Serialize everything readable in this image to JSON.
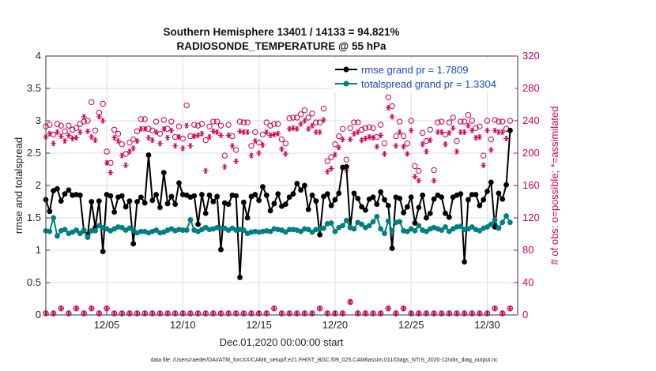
{
  "chart_data": {
    "type": "line",
    "title": "Southern Hemisphere 13401 / 14133 = 94.821%",
    "subtitle": "RADIOSONDE_TEMPERATURE @ 55 hPa",
    "xlabel": "Dec.01,2020 00:00:00 start",
    "ylabel": "rmse and totalspread",
    "ylabel_right": "# of obs: o=possible; *=assimilated",
    "footer": "data file: /Users/raeder/DAI/ATM_forcXX/CAM6_setup/f.e21.FHIST_BGC.f09_025.CAM6assim.011/Diags_NTrS_2020-12/obs_diag_output.nc",
    "xlim": [
      1,
      32
    ],
    "ylim": [
      0,
      4
    ],
    "ylim_right": [
      0,
      320
    ],
    "x_ticks": [
      5,
      10,
      15,
      20,
      25,
      30
    ],
    "x_tick_labels": [
      "12/05",
      "12/10",
      "12/15",
      "12/20",
      "12/25",
      "12/30"
    ],
    "y_ticks": [
      0,
      0.5,
      1,
      1.5,
      2,
      2.5,
      3,
      3.5,
      4
    ],
    "y_tick_labels": [
      "0",
      "0.5",
      "1",
      "1.5",
      "2",
      "2.5",
      "3",
      "3.5",
      "4"
    ],
    "y_ticks_right": [
      0,
      40,
      80,
      120,
      160,
      200,
      240,
      280,
      320
    ],
    "y_tick_labels_right": [
      "0",
      "40",
      "80",
      "120",
      "160",
      "200",
      "240",
      "280",
      "320"
    ],
    "grid": true,
    "legend_position": "top-right",
    "colors": {
      "rmse": "#000000",
      "spread": "#008080",
      "obs": "#cc0055",
      "legend_text": "#1a47d6"
    },
    "series": [
      {
        "name": "rmse grand pr = 1.7809",
        "color": "#000000",
        "x": [
          1.0,
          1.25,
          1.5,
          1.75,
          2.0,
          2.25,
          2.5,
          2.75,
          3.0,
          3.25,
          3.5,
          3.75,
          4.0,
          4.25,
          4.5,
          4.75,
          5.0,
          5.25,
          5.5,
          5.75,
          6.0,
          6.25,
          6.5,
          6.75,
          7.0,
          7.25,
          7.5,
          7.75,
          8.0,
          8.25,
          8.5,
          8.75,
          9.0,
          9.25,
          9.5,
          9.75,
          10.0,
          10.25,
          10.5,
          10.75,
          11.0,
          11.25,
          11.5,
          11.75,
          12.0,
          12.25,
          12.5,
          12.75,
          13.0,
          13.25,
          13.5,
          13.75,
          14.0,
          14.25,
          14.5,
          14.75,
          15.0,
          15.25,
          15.5,
          15.75,
          16.0,
          16.25,
          16.5,
          16.75,
          17.0,
          17.25,
          17.5,
          17.75,
          18.0,
          18.25,
          18.5,
          18.75,
          19.0,
          19.25,
          19.5,
          19.75,
          20.0,
          20.25,
          20.5,
          20.75,
          21.0,
          21.25,
          21.5,
          21.75,
          22.0,
          22.25,
          22.5,
          22.75,
          23.0,
          23.25,
          23.5,
          23.75,
          24.0,
          24.25,
          24.5,
          24.75,
          25.0,
          25.25,
          25.5,
          25.75,
          26.0,
          26.25,
          26.5,
          26.75,
          27.0,
          27.25,
          27.5,
          27.75,
          28.0,
          28.25,
          28.5,
          28.75,
          29.0,
          29.25,
          29.5,
          29.75,
          30.0,
          30.25,
          30.5,
          30.75,
          31.0,
          31.25,
          31.5
        ],
        "values": [
          1.78,
          1.6,
          1.92,
          1.95,
          1.76,
          1.87,
          1.93,
          1.85,
          1.86,
          1.85,
          1.3,
          1.24,
          1.75,
          1.35,
          1.76,
          0.98,
          1.86,
          1.84,
          1.59,
          1.82,
          1.84,
          1.67,
          1.76,
          1.1,
          1.75,
          1.82,
          1.73,
          2.47,
          1.77,
          1.86,
          1.66,
          2.2,
          1.72,
          1.83,
          1.71,
          2.04,
          1.86,
          1.85,
          1.82,
          1.84,
          1.4,
          1.86,
          1.57,
          1.85,
          1.75,
          1.83,
          1.01,
          1.73,
          1.71,
          1.85,
          1.84,
          0.58,
          1.74,
          1.5,
          1.83,
          1.86,
          1.77,
          1.98,
          1.85,
          1.61,
          1.72,
          1.87,
          1.68,
          1.71,
          1.82,
          1.87,
          2.03,
          1.93,
          2.0,
          1.63,
          1.85,
          1.76,
          1.24,
          1.83,
          1.87,
          1.69,
          1.78,
          1.88,
          2.28,
          2.29,
          1.35,
          1.88,
          1.8,
          1.67,
          1.62,
          1.79,
          1.82,
          1.71,
          1.9,
          1.78,
          1.69,
          1.03,
          1.82,
          1.8,
          1.58,
          1.67,
          1.82,
          1.42,
          1.66,
          1.85,
          1.5,
          1.57,
          1.79,
          1.85,
          1.82,
          1.57,
          1.51,
          1.82,
          1.85,
          1.87,
          0.82,
          1.78,
          1.86,
          1.86,
          1.69,
          1.78,
          1.91,
          2.05,
          1.36,
          1.88,
          1.79,
          2.01,
          2.85
        ]
      },
      {
        "name": "totalspread grand pr = 1.3304",
        "color": "#008080",
        "x": [
          1.0,
          1.25,
          1.5,
          1.75,
          2.0,
          2.25,
          2.5,
          2.75,
          3.0,
          3.25,
          3.5,
          3.75,
          4.0,
          4.25,
          4.5,
          4.75,
          5.0,
          5.25,
          5.5,
          5.75,
          6.0,
          6.25,
          6.5,
          6.75,
          7.0,
          7.25,
          7.5,
          7.75,
          8.0,
          8.25,
          8.5,
          8.75,
          9.0,
          9.25,
          9.5,
          9.75,
          10.0,
          10.25,
          10.5,
          10.75,
          11.0,
          11.25,
          11.5,
          11.75,
          12.0,
          12.25,
          12.5,
          12.75,
          13.0,
          13.25,
          13.5,
          13.75,
          14.0,
          14.25,
          14.5,
          14.75,
          15.0,
          15.25,
          15.5,
          15.75,
          16.0,
          16.25,
          16.5,
          16.75,
          17.0,
          17.25,
          17.5,
          17.75,
          18.0,
          18.25,
          18.5,
          18.75,
          19.0,
          19.25,
          19.5,
          19.75,
          20.0,
          20.25,
          20.5,
          20.75,
          21.0,
          21.25,
          21.5,
          21.75,
          22.0,
          22.25,
          22.5,
          22.75,
          23.0,
          23.25,
          23.5,
          23.75,
          24.0,
          24.25,
          24.5,
          24.75,
          25.0,
          25.25,
          25.5,
          25.75,
          26.0,
          26.25,
          26.5,
          26.75,
          27.0,
          27.25,
          27.5,
          27.75,
          28.0,
          28.25,
          28.5,
          28.75,
          29.0,
          29.25,
          29.5,
          29.75,
          30.0,
          30.25,
          30.5,
          30.75,
          31.0,
          31.25,
          31.5
        ],
        "values": [
          1.3,
          1.29,
          1.5,
          1.22,
          1.3,
          1.32,
          1.26,
          1.28,
          1.31,
          1.26,
          1.31,
          1.2,
          1.3,
          1.3,
          1.38,
          1.35,
          1.33,
          1.3,
          1.33,
          1.36,
          1.35,
          1.31,
          1.34,
          1.31,
          1.27,
          1.29,
          1.29,
          1.27,
          1.29,
          1.31,
          1.27,
          1.28,
          1.31,
          1.33,
          1.3,
          1.32,
          1.31,
          1.31,
          1.47,
          1.31,
          1.29,
          1.32,
          1.35,
          1.32,
          1.33,
          1.35,
          1.34,
          1.34,
          1.31,
          1.34,
          1.31,
          1.32,
          1.31,
          1.26,
          1.28,
          1.29,
          1.28,
          1.29,
          1.3,
          1.29,
          1.33,
          1.32,
          1.31,
          1.28,
          1.32,
          1.32,
          1.31,
          1.29,
          1.33,
          1.32,
          1.28,
          1.32,
          1.33,
          1.34,
          1.41,
          1.42,
          1.29,
          1.35,
          1.38,
          1.46,
          1.35,
          1.33,
          1.43,
          1.4,
          1.35,
          1.38,
          1.44,
          1.52,
          1.33,
          1.26,
          1.45,
          1.3,
          1.43,
          1.44,
          1.3,
          1.29,
          1.33,
          1.3,
          1.38,
          1.31,
          1.29,
          1.33,
          1.35,
          1.33,
          1.31,
          1.36,
          1.29,
          1.33,
          1.36,
          1.37,
          1.32,
          1.33,
          1.36,
          1.32,
          1.3,
          1.34,
          1.36,
          1.4,
          1.47,
          1.34,
          1.43,
          1.53,
          1.43
        ]
      },
      {
        "name": "obs possible",
        "color": "#cc0055",
        "axis": "right",
        "marker": "o",
        "x": [
          1.0,
          1.25,
          1.5,
          1.75,
          2.0,
          2.25,
          2.5,
          2.75,
          3.0,
          3.25,
          3.5,
          3.75,
          4.0,
          4.25,
          4.5,
          4.75,
          5.0,
          5.25,
          5.5,
          5.75,
          6.0,
          6.25,
          6.5,
          6.75,
          7.0,
          7.25,
          7.5,
          7.75,
          8.0,
          8.25,
          8.5,
          8.75,
          9.0,
          9.25,
          9.5,
          9.75,
          10.0,
          10.25,
          10.5,
          10.75,
          11.0,
          11.25,
          11.5,
          11.75,
          12.0,
          12.25,
          12.5,
          12.75,
          13.0,
          13.25,
          13.5,
          13.75,
          14.0,
          14.25,
          14.5,
          14.75,
          15.0,
          15.25,
          15.5,
          15.75,
          16.0,
          16.25,
          16.5,
          16.75,
          17.0,
          17.25,
          17.5,
          17.75,
          18.0,
          18.25,
          18.5,
          18.75,
          19.0,
          19.25,
          19.5,
          19.75,
          20.0,
          20.25,
          20.5,
          20.75,
          21.0,
          21.25,
          21.5,
          21.75,
          22.0,
          22.25,
          22.5,
          22.75,
          23.0,
          23.25,
          23.5,
          23.75,
          24.0,
          24.25,
          24.5,
          24.75,
          25.0,
          25.25,
          25.5,
          25.75,
          26.0,
          26.25,
          26.5,
          26.75,
          27.0,
          27.25,
          27.5,
          27.75,
          28.0,
          28.25,
          28.5,
          28.75,
          29.0,
          29.25,
          29.5,
          29.75,
          30.0,
          30.25,
          30.5,
          30.75,
          31.0,
          31.25,
          31.5
        ],
        "values": [
          233,
          235,
          223,
          236,
          234,
          227,
          234,
          229,
          231,
          236,
          239,
          240,
          263,
          228,
          250,
          261,
          202,
          188,
          229,
          224,
          211,
          199,
          213,
          217,
          227,
          242,
          242,
          230,
          228,
          239,
          224,
          241,
          230,
          239,
          220,
          233,
          218,
          259,
          221,
          235,
          234,
          236,
          216,
          233,
          239,
          239,
          234,
          197,
          235,
          221,
          204,
          239,
          238,
          238,
          209,
          226,
          213,
          223,
          238,
          234,
          236,
          236,
          217,
          212,
          243,
          244,
          244,
          248,
          253,
          244,
          249,
          238,
          238,
          255,
          190,
          195,
          211,
          221,
          230,
          192,
          231,
          238,
          238,
          229,
          231,
          232,
          231,
          220,
          235,
          212,
          269,
          258,
          221,
          239,
          221,
          212,
          240,
          184,
          178,
          225,
          215,
          229,
          179,
          238,
          239,
          223,
          238,
          244,
          215,
          239,
          239,
          247,
          240,
          231,
          233,
          197,
          240,
          217,
          241,
          239,
          239,
          230,
          240
        ]
      },
      {
        "name": "obs assimilated",
        "color": "#cc0055",
        "axis": "right",
        "marker": "*",
        "x": [
          1.0,
          1.25,
          1.5,
          1.75,
          2.0,
          2.25,
          2.5,
          2.75,
          3.0,
          3.25,
          3.5,
          3.75,
          4.0,
          4.25,
          4.5,
          4.75,
          5.0,
          5.25,
          5.5,
          5.75,
          6.0,
          6.25,
          6.5,
          6.75,
          7.0,
          7.25,
          7.5,
          7.75,
          8.0,
          8.25,
          8.5,
          8.75,
          9.0,
          9.25,
          9.5,
          9.75,
          10.0,
          10.25,
          10.5,
          10.75,
          11.0,
          11.25,
          11.5,
          11.75,
          12.0,
          12.25,
          12.5,
          12.75,
          13.0,
          13.25,
          13.5,
          13.75,
          14.0,
          14.25,
          14.5,
          14.75,
          15.0,
          15.25,
          15.5,
          15.75,
          16.0,
          16.25,
          16.5,
          16.75,
          17.0,
          17.25,
          17.5,
          17.75,
          18.0,
          18.25,
          18.5,
          18.75,
          19.0,
          19.25,
          19.5,
          19.75,
          20.0,
          20.25,
          20.5,
          20.75,
          21.0,
          21.25,
          21.5,
          21.75,
          22.0,
          22.25,
          22.5,
          22.75,
          23.0,
          23.25,
          23.5,
          23.75,
          24.0,
          24.25,
          24.5,
          24.75,
          25.0,
          25.25,
          25.5,
          25.75,
          26.0,
          26.25,
          26.5,
          26.75,
          27.0,
          27.25,
          27.5,
          27.75,
          28.0,
          28.25,
          28.5,
          28.75,
          29.0,
          29.25,
          29.5,
          29.75,
          30.0,
          30.25,
          30.5,
          30.75,
          31.0,
          31.25,
          31.5
        ],
        "values": [
          220,
          224,
          212,
          226,
          221,
          215,
          222,
          218,
          219,
          226,
          245,
          227,
          220,
          216,
          245,
          240,
          188,
          176,
          219,
          215,
          197,
          185,
          202,
          206,
          215,
          230,
          230,
          219,
          216,
          226,
          212,
          230,
          219,
          228,
          209,
          220,
          206,
          234,
          209,
          221,
          222,
          224,
          178,
          220,
          227,
          226,
          222,
          183,
          222,
          209,
          190,
          227,
          226,
          226,
          197,
          215,
          200,
          210,
          226,
          222,
          223,
          224,
          205,
          199,
          230,
          231,
          230,
          236,
          240,
          230,
          234,
          226,
          226,
          241,
          177,
          181,
          198,
          207,
          217,
          179,
          217,
          224,
          226,
          216,
          218,
          220,
          219,
          208,
          222,
          199,
          256,
          245,
          209,
          226,
          208,
          199,
          228,
          171,
          166,
          211,
          202,
          216,
          166,
          226,
          226,
          211,
          225,
          231,
          202,
          226,
          226,
          234,
          228,
          219,
          220,
          185,
          228,
          204,
          228,
          226,
          226,
          218,
          228
        ]
      },
      {
        "name": "obs near zero",
        "color": "#cc0055",
        "axis": "right",
        "marker": "o*",
        "x": [
          1.0,
          1.5,
          2.0,
          2.5,
          3.0,
          3.5,
          4.0,
          4.5,
          5.0,
          5.5,
          6.0,
          6.5,
          7.0,
          7.5,
          8.0,
          8.5,
          9.0,
          9.5,
          10.0,
          10.5,
          11.0,
          11.5,
          12.0,
          12.5,
          13.0,
          13.5,
          14.0,
          14.5,
          15.0,
          15.5,
          16.0,
          16.5,
          17.0,
          17.5,
          18.0,
          18.5,
          19.0,
          19.5,
          20.0,
          20.5,
          21.0,
          21.5,
          22.0,
          22.5,
          23.0,
          23.5,
          24.0,
          24.5,
          25.0,
          25.5,
          26.0,
          26.5,
          27.0,
          27.5,
          28.0,
          28.5,
          29.0,
          29.5,
          30.0,
          30.5,
          31.0,
          31.5
        ],
        "values": [
          2,
          2,
          8,
          2,
          8,
          2,
          8,
          2,
          8,
          2,
          2,
          2,
          2,
          2,
          2,
          2,
          2,
          2,
          2,
          2,
          2,
          2,
          2,
          2,
          2,
          2,
          2,
          2,
          2,
          2,
          8,
          2,
          2,
          2,
          2,
          2,
          8,
          2,
          2,
          2,
          16,
          2,
          2,
          2,
          2,
          8,
          2,
          8,
          2,
          2,
          2,
          2,
          2,
          2,
          2,
          2,
          2,
          2,
          2,
          8,
          2,
          8
        ]
      }
    ]
  }
}
